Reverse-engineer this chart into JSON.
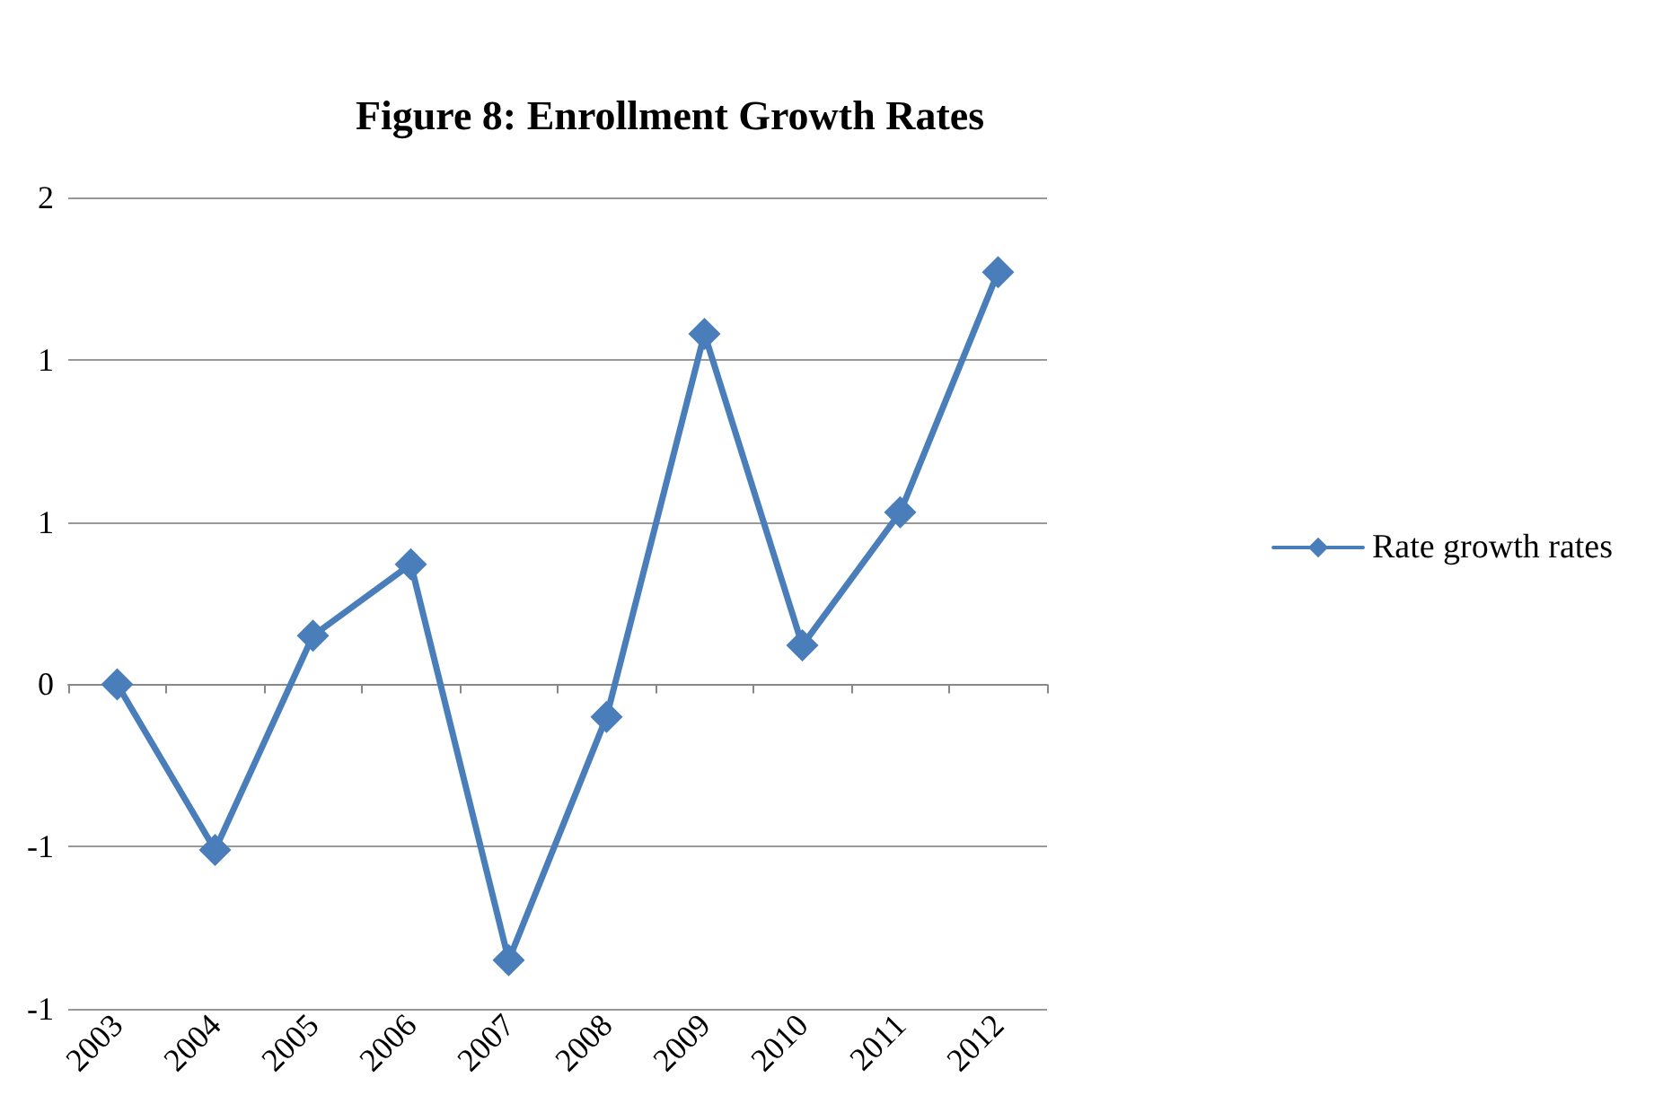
{
  "chart_data": {
    "type": "line",
    "title": "Figure 8: Enrollment Growth Rates",
    "categories": [
      "2003",
      "2004",
      "2005",
      "2006",
      "2007",
      "2008",
      "2009",
      "2010",
      "2011",
      "2012"
    ],
    "series": [
      {
        "name": "Rate growth rates",
        "color": "#4a7ebb",
        "values": [
          0,
          -0.51,
          0.15,
          0.37,
          -0.85,
          -0.1,
          1.08,
          0.12,
          0.53,
          1.27
        ]
      }
    ],
    "ylim": [
      -1,
      1.5
    ],
    "yticks": [
      {
        "value": -1,
        "label": "-1"
      },
      {
        "value": -0.5,
        "label": "-1"
      },
      0,
      {
        "value": 0.5,
        "label": "1"
      },
      {
        "value": 1,
        "label": "1"
      },
      {
        "value": 1.5,
        "label": "2"
      }
    ],
    "grid": "y",
    "legend": "right",
    "marker": "diamond",
    "line_style": "solid"
  }
}
